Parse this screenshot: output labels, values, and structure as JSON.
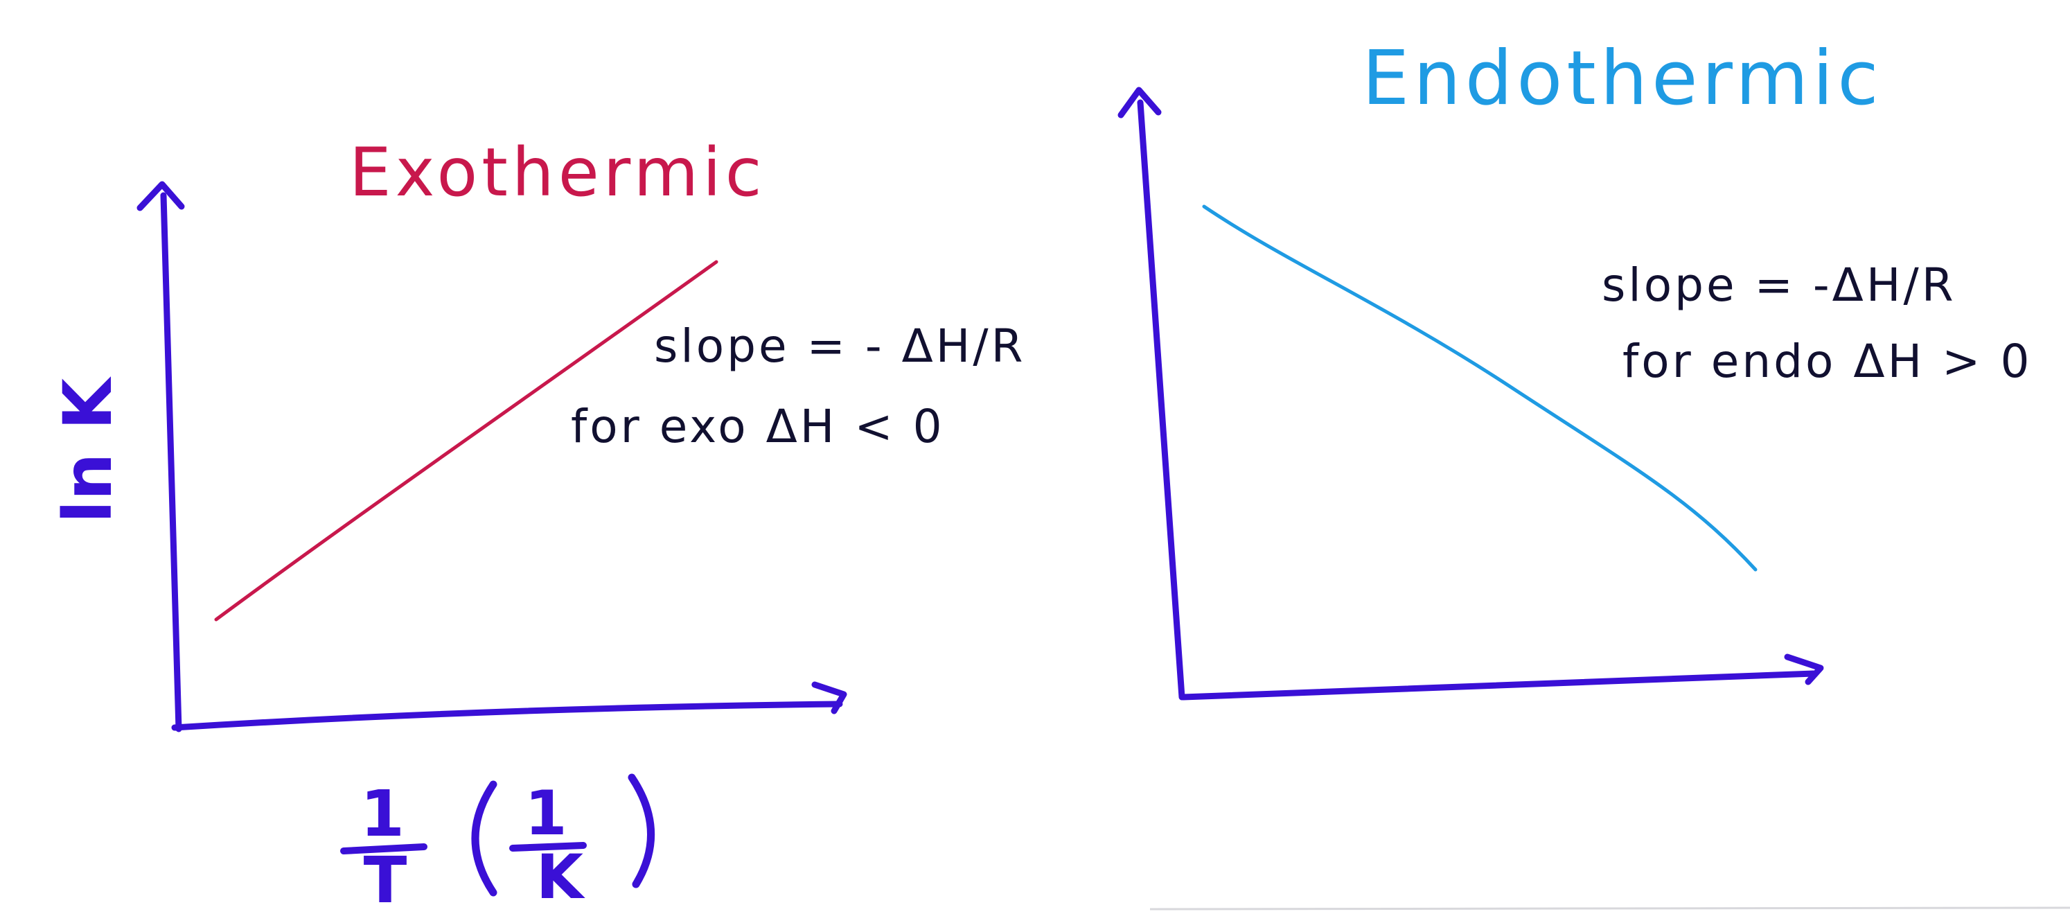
{
  "exothermic": {
    "title": "Exothermic",
    "slope_label": "slope = - ΔH/R",
    "condition_label": "for exo ΔH < 0",
    "trend": "increasing",
    "color": "#c8184c"
  },
  "endothermic": {
    "title": "Endothermic",
    "slope_label": "slope = -ΔH/R",
    "condition_label": "for endo ΔH > 0",
    "trend": "decreasing",
    "color": "#1f9be3"
  },
  "axes": {
    "y_label": "ln K",
    "x_label_prefix": "1",
    "x_label_prefix_denominator": "T",
    "x_label_unit_numerator": "1",
    "x_label_unit_denominator": "K",
    "color": "#3a10d6"
  }
}
